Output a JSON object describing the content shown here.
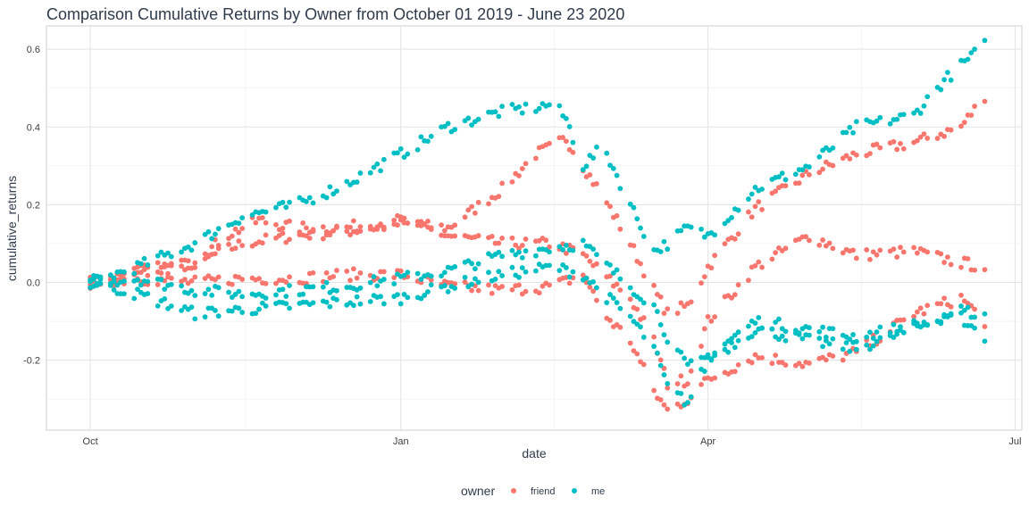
{
  "chart_data": {
    "type": "scatter",
    "title": "Comparison Cumulative Returns by Owner from October 01 2019 - June 23 2020",
    "xlabel": "date",
    "ylabel": "cumulative_returns",
    "x_ticks": [
      "Oct",
      "Jan",
      "Apr",
      "Jul"
    ],
    "x_tick_dates": [
      "2019-10-01",
      "2020-01-01",
      "2020-04-01",
      "2020-07-01"
    ],
    "xlim": [
      "2019-09-18",
      "2020-07-03"
    ],
    "y_ticks": [
      -0.2,
      0.0,
      0.2,
      0.4,
      0.6
    ],
    "y_tick_labels": [
      "-0.2",
      "0.0",
      "0.2",
      "0.4",
      "0.6"
    ],
    "ylim": [
      -0.38,
      0.66
    ],
    "grid": true,
    "legend": {
      "title": "owner",
      "position": "bottom"
    },
    "series": [
      {
        "name": "friend",
        "color": "#f8766d",
        "tracks": [
          {
            "x": [
              "2019-10-01",
              "2019-10-15",
              "2019-11-01",
              "2019-11-15",
              "2019-12-01",
              "2019-12-15",
              "2020-01-01",
              "2020-01-15",
              "2020-01-31",
              "2020-02-10",
              "2020-02-15",
              "2020-02-19",
              "2020-02-24",
              "2020-03-01",
              "2020-03-09",
              "2020-03-16",
              "2020-03-20",
              "2020-03-26",
              "2020-04-01",
              "2020-04-15",
              "2020-05-01",
              "2020-05-15",
              "2020-06-01",
              "2020-06-15",
              "2020-06-22"
            ],
            "y": [
              0.0,
              0.02,
              0.05,
              0.1,
              0.12,
              0.13,
              0.15,
              0.14,
              0.24,
              0.33,
              0.35,
              0.37,
              0.3,
              0.22,
              0.1,
              -0.02,
              -0.08,
              -0.06,
              0.04,
              0.19,
              0.28,
              0.33,
              0.36,
              0.4,
              0.48
            ]
          },
          {
            "x": [
              "2019-10-01",
              "2019-10-15",
              "2019-11-01",
              "2019-11-10",
              "2019-11-20",
              "2019-12-01",
              "2019-12-15",
              "2020-01-01",
              "2020-01-15",
              "2020-01-31",
              "2020-02-15",
              "2020-02-24",
              "2020-03-01",
              "2020-03-09",
              "2020-03-16",
              "2020-03-20",
              "2020-03-26",
              "2020-04-01",
              "2020-04-15",
              "2020-05-01",
              "2020-05-15",
              "2020-06-01",
              "2020-06-15",
              "2020-06-22"
            ],
            "y": [
              0.0,
              0.03,
              0.05,
              0.12,
              0.16,
              0.14,
              0.14,
              0.16,
              0.12,
              0.1,
              0.1,
              0.07,
              0.02,
              -0.04,
              -0.15,
              -0.26,
              -0.25,
              -0.1,
              0.04,
              0.12,
              0.07,
              0.08,
              0.05,
              0.04
            ]
          },
          {
            "x": [
              "2019-10-01",
              "2019-10-15",
              "2019-11-01",
              "2019-11-15",
              "2019-12-01",
              "2019-12-15",
              "2020-01-01",
              "2020-01-15",
              "2020-01-31",
              "2020-02-15",
              "2020-02-24",
              "2020-03-01",
              "2020-03-09",
              "2020-03-16",
              "2020-03-20",
              "2020-03-26",
              "2020-04-01",
              "2020-04-15",
              "2020-05-01",
              "2020-05-15",
              "2020-06-01",
              "2020-06-15",
              "2020-06-22"
            ],
            "y": [
              0.0,
              0.01,
              0.0,
              0.01,
              0.01,
              0.02,
              0.02,
              -0.01,
              -0.02,
              -0.01,
              0.02,
              -0.08,
              -0.15,
              -0.28,
              -0.33,
              -0.3,
              -0.25,
              -0.19,
              -0.21,
              -0.18,
              -0.08,
              -0.04,
              -0.1
            ]
          }
        ]
      },
      {
        "name": "me",
        "color": "#00bfc4",
        "tracks": [
          {
            "x": [
              "2019-10-01",
              "2019-10-15",
              "2019-11-01",
              "2019-11-15",
              "2019-12-01",
              "2019-12-15",
              "2020-01-01",
              "2020-01-15",
              "2020-01-31",
              "2020-02-10",
              "2020-02-15",
              "2020-02-19",
              "2020-02-24",
              "2020-03-01",
              "2020-03-09",
              "2020-03-16",
              "2020-03-20",
              "2020-03-26",
              "2020-04-01",
              "2020-04-15",
              "2020-05-01",
              "2020-05-15",
              "2020-06-01",
              "2020-06-10",
              "2020-06-22"
            ],
            "y": [
              0.0,
              0.04,
              0.1,
              0.17,
              0.2,
              0.25,
              0.33,
              0.4,
              0.44,
              0.45,
              0.46,
              0.42,
              0.3,
              0.35,
              0.2,
              0.08,
              0.1,
              0.14,
              0.12,
              0.24,
              0.3,
              0.4,
              0.43,
              0.52,
              0.61
            ]
          },
          {
            "x": [
              "2019-10-01",
              "2019-10-15",
              "2019-11-01",
              "2019-11-15",
              "2019-12-01",
              "2019-12-15",
              "2020-01-01",
              "2020-01-15",
              "2020-01-31",
              "2020-02-15",
              "2020-02-24",
              "2020-03-01",
              "2020-03-09",
              "2020-03-16",
              "2020-03-20",
              "2020-03-26",
              "2020-04-01",
              "2020-04-15",
              "2020-05-01",
              "2020-05-15",
              "2020-06-01",
              "2020-06-15",
              "2020-06-22"
            ],
            "y": [
              0.0,
              0.01,
              -0.02,
              -0.03,
              -0.02,
              -0.01,
              0.01,
              0.03,
              0.07,
              0.09,
              0.1,
              0.05,
              -0.01,
              -0.06,
              -0.14,
              -0.22,
              -0.19,
              -0.1,
              -0.12,
              -0.14,
              -0.11,
              -0.09,
              -0.14
            ]
          },
          {
            "x": [
              "2019-10-01",
              "2019-10-15",
              "2019-11-01",
              "2019-11-15",
              "2019-12-01",
              "2019-12-15",
              "2020-01-01",
              "2020-01-15",
              "2020-01-31",
              "2020-02-15",
              "2020-02-24",
              "2020-03-01",
              "2020-03-09",
              "2020-03-16",
              "2020-03-20",
              "2020-03-26",
              "2020-04-01",
              "2020-04-15",
              "2020-05-01",
              "2020-05-15",
              "2020-06-01",
              "2020-06-15",
              "2020-06-22"
            ],
            "y": [
              0.0,
              -0.03,
              -0.08,
              -0.07,
              -0.06,
              -0.05,
              -0.04,
              -0.01,
              0.02,
              0.04,
              0.02,
              -0.03,
              -0.09,
              -0.17,
              -0.27,
              -0.31,
              -0.2,
              -0.12,
              -0.15,
              -0.17,
              -0.12,
              -0.07,
              -0.09
            ]
          }
        ]
      }
    ]
  }
}
